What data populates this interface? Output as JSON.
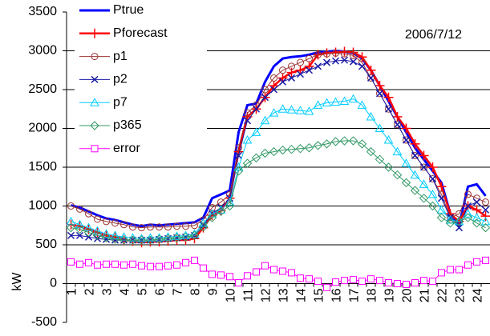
{
  "chart_data": {
    "type": "line",
    "annotation": "2006/7/12",
    "y_label": "kW",
    "categories": [
      "1",
      null,
      "2",
      null,
      "3",
      null,
      "4",
      null,
      "5",
      null,
      "6",
      null,
      "7",
      null,
      "8",
      null,
      "9",
      null,
      "10",
      null,
      "11",
      null,
      "12",
      null,
      "13",
      null,
      "14",
      null,
      "15",
      null,
      "16",
      null,
      "17",
      null,
      "18",
      null,
      "19",
      null,
      "20",
      null,
      "21",
      null,
      "22",
      null,
      "23",
      null,
      "24",
      null
    ],
    "ylim": [
      -500,
      3500
    ],
    "yticks": [
      -500,
      0,
      500,
      1000,
      1500,
      2000,
      2500,
      3000,
      3500
    ],
    "grid": true,
    "legend": "upper left",
    "series": [
      {
        "name": "Ptrue",
        "color": "#0000ff",
        "marker": "none",
        "line_width": 3,
        "values": [
          1010,
          980,
          930,
          880,
          840,
          820,
          790,
          760,
          740,
          760,
          750,
          760,
          770,
          780,
          790,
          850,
          1100,
          1150,
          1200,
          1950,
          2300,
          2320,
          2600,
          2800,
          2900,
          2920,
          2930,
          2950,
          2980,
          2990,
          3000,
          2990,
          2970,
          2900,
          2750,
          2550,
          2350,
          2150,
          1950,
          1750,
          1600,
          1450,
          1300,
          900,
          750,
          1250,
          1280,
          1130
        ]
      },
      {
        "name": "Pforecast",
        "color": "#ff0000",
        "marker": "plus",
        "line_width": 2.5,
        "values": [
          760,
          740,
          700,
          660,
          620,
          600,
          560,
          550,
          530,
          540,
          540,
          550,
          560,
          560,
          580,
          720,
          880,
          940,
          1100,
          1700,
          2150,
          2250,
          2400,
          2550,
          2650,
          2720,
          2750,
          2800,
          2950,
          2970,
          2980,
          2990,
          2980,
          2920,
          2750,
          2550,
          2400,
          2150,
          2000,
          1800,
          1650,
          1500,
          1250,
          900,
          800,
          1000,
          950,
          870
        ]
      },
      {
        "name": "p1",
        "color": "#993333",
        "marker": "circle",
        "line_width": 1,
        "values": [
          1000,
          960,
          900,
          830,
          800,
          780,
          760,
          730,
          720,
          730,
          730,
          730,
          740,
          740,
          750,
          820,
          980,
          1050,
          1150,
          1750,
          2200,
          2300,
          2500,
          2650,
          2750,
          2800,
          2850,
          2900,
          2950,
          2960,
          2970,
          2960,
          2940,
          2850,
          2650,
          2450,
          2250,
          2050,
          1850,
          1650,
          1500,
          1350,
          1150,
          850,
          900,
          1150,
          1100,
          1050
        ]
      },
      {
        "name": "p2",
        "color": "#1a1aa6",
        "marker": "x",
        "line_width": 1,
        "values": [
          620,
          620,
          600,
          580,
          570,
          560,
          560,
          560,
          560,
          560,
          570,
          580,
          590,
          600,
          620,
          750,
          900,
          980,
          1100,
          1650,
          2100,
          2250,
          2400,
          2500,
          2600,
          2650,
          2700,
          2750,
          2800,
          2850,
          2870,
          2880,
          2860,
          2800,
          2650,
          2450,
          2250,
          2050,
          1850,
          1650,
          1500,
          1350,
          1100,
          850,
          720,
          1000,
          1050,
          950
        ]
      },
      {
        "name": "p7",
        "color": "#00ccff",
        "marker": "triangle",
        "line_width": 1,
        "values": [
          800,
          760,
          720,
          680,
          640,
          620,
          600,
          590,
          580,
          590,
          590,
          600,
          610,
          620,
          640,
          780,
          900,
          950,
          1050,
          1500,
          1850,
          1950,
          2100,
          2200,
          2250,
          2240,
          2230,
          2220,
          2300,
          2330,
          2340,
          2350,
          2380,
          2300,
          2150,
          2000,
          1850,
          1700,
          1550,
          1400,
          1280,
          1150,
          950,
          820,
          800,
          900,
          850,
          800
        ]
      },
      {
        "name": "p365",
        "color": "#339966",
        "marker": "diamond",
        "line_width": 1,
        "values": [
          720,
          700,
          660,
          620,
          590,
          570,
          560,
          560,
          560,
          560,
          570,
          580,
          590,
          600,
          620,
          730,
          850,
          930,
          1000,
          1450,
          1550,
          1620,
          1680,
          1700,
          1720,
          1730,
          1740,
          1750,
          1780,
          1800,
          1830,
          1840,
          1840,
          1800,
          1700,
          1600,
          1500,
          1400,
          1300,
          1200,
          1100,
          1000,
          850,
          780,
          800,
          850,
          780,
          720
        ]
      },
      {
        "name": "error",
        "color": "#ff00ff",
        "marker": "square",
        "line_width": 1,
        "values": [
          280,
          250,
          270,
          240,
          250,
          250,
          240,
          250,
          230,
          220,
          220,
          230,
          240,
          270,
          300,
          200,
          120,
          110,
          90,
          10,
          100,
          150,
          230,
          180,
          160,
          140,
          70,
          60,
          30,
          -50,
          20,
          40,
          50,
          30,
          60,
          40,
          10,
          0,
          -10,
          10,
          40,
          30,
          140,
          180,
          180,
          240,
          280,
          300
        ]
      }
    ]
  }
}
